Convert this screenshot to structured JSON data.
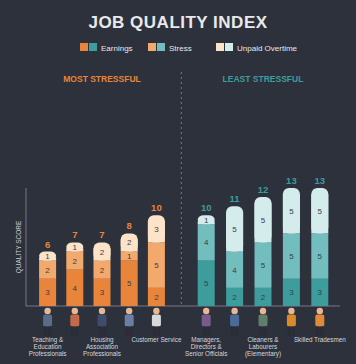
{
  "chart_data": {
    "type": "bar",
    "stacked": true,
    "data_labels": true,
    "tick_labels": false,
    "grid": false,
    "title": "JOB QUALITY INDEX",
    "y_label": "QUALITY SCORE",
    "annotations": [
      "MOST STRESSFUL",
      "LEAST STRESSFUL"
    ],
    "categories": [
      "Teaching & Education Professionals",
      null,
      "Housing Association Professionals",
      null,
      "Customer Service",
      "Managers, Directors & Senior Officials",
      null,
      "Cleaners & Labourers (Elementary)",
      null,
      "Skilled Tradesmen"
    ],
    "ylim": [
      0,
      13
    ],
    "yticks": [],
    "totals": [
      6,
      7,
      7,
      8,
      10,
      10,
      11,
      12,
      13,
      13
    ],
    "series": [
      {
        "name": "Earnings",
        "values": [
          3,
          4,
          3,
          5,
          2,
          5,
          2,
          2,
          3,
          3
        ],
        "colors": [
          "#e8853a",
          "#e8853a",
          "#e8853a",
          "#e8853a",
          "#e8853a",
          "#3d9c9c",
          "#3d9c9c",
          "#3d9c9c",
          "#3d9c9c",
          "#3d9c9c"
        ]
      },
      {
        "name": "Stress",
        "values": [
          2,
          2,
          2,
          1,
          5,
          4,
          4,
          5,
          5,
          5
        ],
        "colors": [
          "#f3a96b",
          "#f3a96b",
          "#f3a96b",
          "#f3a96b",
          "#f3a96b",
          "#72bdbd",
          "#72bdbd",
          "#72bdbd",
          "#72bdbd",
          "#72bdbd"
        ]
      },
      {
        "name": "Unpaid Overtime",
        "values": [
          1,
          1,
          2,
          2,
          3,
          1,
          5,
          5,
          5,
          5
        ],
        "colors": [
          "#fde3c8",
          "#fde3c8",
          "#fde3c8",
          "#fde3c8",
          "#fde3c8",
          "#d4ecec",
          "#d4ecec",
          "#d4ecec",
          "#d4ecec",
          "#d4ecec"
        ]
      }
    ]
  }
}
